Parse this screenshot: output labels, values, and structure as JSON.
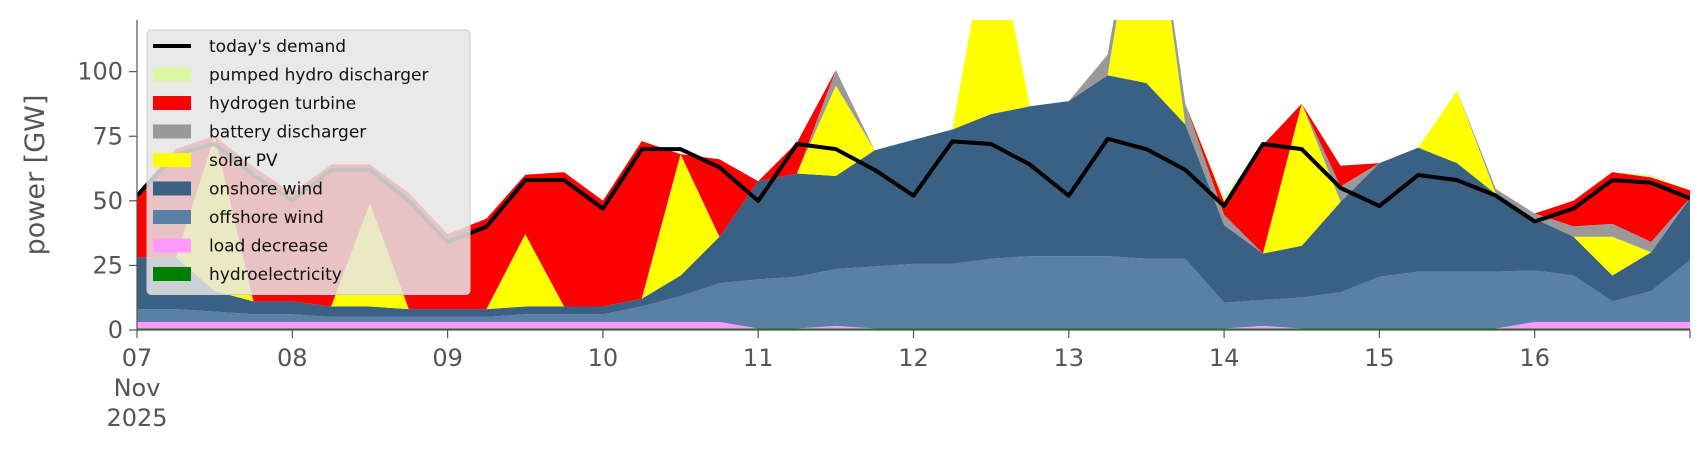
{
  "chart_data": {
    "type": "area",
    "ylabel": "power [GW]",
    "ylim": [
      0,
      120
    ],
    "y_ticks": [
      "0",
      "25",
      "50",
      "75",
      "100"
    ],
    "y_tick_values": [
      0,
      25,
      50,
      75,
      100
    ],
    "x_ticks": [
      {
        "day": 7,
        "label": "07"
      },
      {
        "day": 8,
        "label": "08"
      },
      {
        "day": 9,
        "label": "09"
      },
      {
        "day": 10,
        "label": "10"
      },
      {
        "day": 11,
        "label": "11"
      },
      {
        "day": 12,
        "label": "12"
      },
      {
        "day": 13,
        "label": "13"
      },
      {
        "day": 14,
        "label": "14"
      },
      {
        "day": 15,
        "label": "15"
      },
      {
        "day": 16,
        "label": "16"
      }
    ],
    "x_sublabel_month": "Nov",
    "x_sublabel_year": "2025",
    "xlim": [
      "2025-11-07",
      "2025-11-17"
    ],
    "grid": false,
    "legend_position": "top-left",
    "x": [
      "2025-11-07 00:00",
      "2025-11-07 06:00",
      "2025-11-07 12:00",
      "2025-11-07 18:00",
      "2025-11-08 00:00",
      "2025-11-08 06:00",
      "2025-11-08 12:00",
      "2025-11-08 18:00",
      "2025-11-09 00:00",
      "2025-11-09 06:00",
      "2025-11-09 12:00",
      "2025-11-09 18:00",
      "2025-11-10 00:00",
      "2025-11-10 06:00",
      "2025-11-10 12:00",
      "2025-11-10 18:00",
      "2025-11-11 00:00",
      "2025-11-11 06:00",
      "2025-11-11 12:00",
      "2025-11-11 18:00",
      "2025-11-12 00:00",
      "2025-11-12 06:00",
      "2025-11-12 12:00",
      "2025-11-12 18:00",
      "2025-11-13 00:00",
      "2025-11-13 06:00",
      "2025-11-13 12:00",
      "2025-11-13 18:00",
      "2025-11-14 00:00",
      "2025-11-14 06:00",
      "2025-11-14 12:00",
      "2025-11-14 18:00",
      "2025-11-15 00:00",
      "2025-11-15 06:00",
      "2025-11-15 12:00",
      "2025-11-15 18:00",
      "2025-11-16 00:00",
      "2025-11-16 06:00",
      "2025-11-16 12:00",
      "2025-11-16 18:00",
      "2025-11-17 00:00"
    ],
    "demand": [
      52,
      68,
      72,
      60,
      50,
      62,
      62,
      50,
      34,
      40,
      58,
      58,
      47,
      70,
      70,
      63,
      50,
      72,
      70,
      62,
      52,
      73,
      72,
      64,
      52,
      74,
      70,
      62,
      48,
      72,
      70,
      55,
      48,
      60,
      58,
      52,
      42,
      47,
      58,
      57,
      51
    ],
    "series": [
      {
        "name": "hydroelectricity",
        "color": "#008000",
        "values": [
          0.6,
          0.6,
          0.6,
          0.6,
          0.6,
          0.6,
          0.6,
          0.6,
          0.6,
          0.6,
          0.6,
          0.6,
          0.6,
          0.6,
          0.6,
          0.6,
          0.6,
          0.6,
          0.6,
          0.6,
          0.6,
          0.6,
          0.6,
          0.6,
          0.6,
          0.6,
          0.6,
          0.6,
          0.6,
          0.6,
          0.6,
          0.6,
          0.6,
          0.6,
          0.6,
          0.6,
          0.6,
          0.6,
          0.6,
          0.6,
          0.6
        ]
      },
      {
        "name": "load decrease",
        "color": "#ff99ff",
        "values": [
          2.5,
          2.5,
          2.5,
          2.5,
          2.5,
          2.5,
          2.5,
          2.5,
          2.5,
          2.5,
          2.5,
          2.5,
          2.5,
          2.5,
          2.5,
          2.5,
          0,
          0,
          1,
          0,
          0,
          0,
          0,
          0,
          0,
          0,
          0,
          0,
          0,
          1,
          0,
          0,
          0,
          0,
          0,
          0,
          2.5,
          2.5,
          2.5,
          2.5,
          2.5
        ]
      },
      {
        "name": "offshore wind",
        "color": "#5a80a5",
        "values": [
          5,
          5,
          4,
          3,
          3,
          2,
          2,
          2,
          2,
          2,
          3,
          3,
          3,
          6,
          10,
          15,
          19,
          20,
          22,
          24,
          25,
          25,
          27,
          28,
          28,
          28,
          27,
          27,
          10,
          10,
          12,
          14,
          20,
          22,
          22,
          22,
          20,
          18,
          8,
          12,
          24
        ]
      },
      {
        "name": "onshore wind",
        "color": "#3a6183",
        "values": [
          20,
          20,
          8,
          5,
          5,
          4,
          4,
          3,
          3,
          3,
          3,
          3,
          3,
          3,
          8,
          18,
          38,
          40,
          36,
          45,
          48,
          52,
          56,
          58,
          60,
          70,
          68,
          52,
          30,
          18,
          20,
          35,
          44,
          48,
          42,
          30,
          20,
          15,
          10,
          15,
          24
        ]
      },
      {
        "name": "solar PV",
        "color": "#ffff00",
        "values": [
          0,
          0,
          60,
          0,
          0,
          0,
          40,
          0,
          0,
          0,
          28,
          0,
          0,
          0,
          47,
          0,
          0,
          0,
          35,
          0,
          0,
          0,
          78,
          0,
          0,
          0,
          95,
          0,
          0,
          0,
          55,
          0,
          0,
          0,
          28,
          0,
          0,
          0,
          15,
          0,
          0
        ]
      },
      {
        "name": "battery discharger",
        "color": "#999999",
        "values": [
          0,
          0,
          0,
          0,
          0,
          0,
          0,
          0,
          0,
          0,
          0,
          0,
          0,
          0,
          0,
          0,
          0,
          0,
          6,
          0,
          0,
          0,
          0,
          0,
          0,
          8,
          2,
          8,
          4,
          0,
          0,
          6,
          0,
          0,
          0,
          2,
          2,
          4,
          5,
          4,
          0
        ]
      },
      {
        "name": "hydrogen turbine",
        "color": "#ff0000",
        "values": [
          25,
          42,
          0,
          52,
          42,
          55,
          15,
          45,
          29,
          35,
          23,
          52,
          41,
          61,
          0,
          30,
          0,
          12,
          0,
          0,
          0,
          0,
          0,
          0,
          0,
          0,
          0,
          0,
          5,
          42,
          0,
          8,
          0,
          0,
          0,
          0,
          0,
          10,
          20,
          25,
          3
        ]
      },
      {
        "name": "pumped hydro discharger",
        "color": "#d9f7a4",
        "values": [
          0,
          0,
          0,
          0,
          0,
          0,
          0,
          0,
          0,
          0,
          0,
          0,
          0,
          0,
          0,
          0,
          0,
          0,
          0,
          0,
          0,
          0,
          0,
          0,
          0,
          0,
          0,
          0,
          2,
          0,
          0,
          0,
          0,
          0,
          0,
          0,
          0,
          0,
          0,
          1,
          0
        ]
      }
    ],
    "legend": [
      {
        "label": "today's demand",
        "kind": "line",
        "color": "#000000"
      },
      {
        "label": "pumped hydro discharger",
        "kind": "patch",
        "color": "#d9f7a4"
      },
      {
        "label": "hydrogen turbine",
        "kind": "patch",
        "color": "#ff0000"
      },
      {
        "label": "battery discharger",
        "kind": "patch",
        "color": "#999999"
      },
      {
        "label": "solar PV",
        "kind": "patch",
        "color": "#ffff00"
      },
      {
        "label": "onshore wind",
        "kind": "patch",
        "color": "#3a6183"
      },
      {
        "label": "offshore wind",
        "kind": "patch",
        "color": "#5a80a5"
      },
      {
        "label": "load decrease",
        "kind": "patch",
        "color": "#ff99ff"
      },
      {
        "label": "hydroelectricity",
        "kind": "patch",
        "color": "#008000"
      }
    ]
  }
}
